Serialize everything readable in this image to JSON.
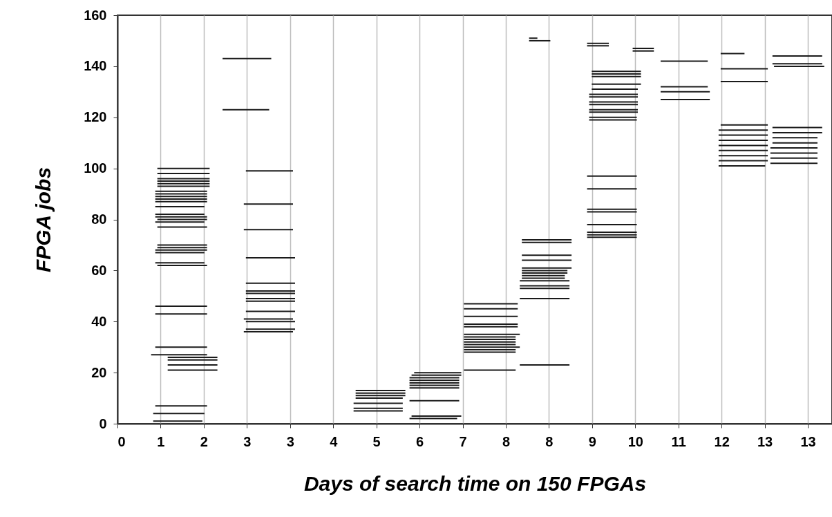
{
  "chart_data": {
    "type": "line",
    "xlabel": "Days of search time on 150 FPGAs",
    "ylabel": "FPGA  jobs",
    "xlim": [
      0,
      13.8
    ],
    "ylim": [
      0,
      160
    ],
    "xticks": [
      0,
      {
        "value": 0.833,
        "label": "1"
      },
      {
        "value": 1.667,
        "label": "2"
      },
      {
        "value": 2.5,
        "label": "3"
      },
      {
        "value": 3.333,
        "label": "3"
      },
      {
        "value": 4.167,
        "label": "4"
      },
      5,
      {
        "value": 5.833,
        "label": "6"
      },
      {
        "value": 6.667,
        "label": "7"
      },
      {
        "value": 7.5,
        "label": "8"
      },
      {
        "value": 8.333,
        "label": "8"
      },
      {
        "value": 9.167,
        "label": "9"
      },
      10,
      {
        "value": 10.833,
        "label": "11"
      },
      {
        "value": 11.667,
        "label": "12"
      },
      {
        "value": 12.5,
        "label": "13"
      },
      {
        "value": 13.333,
        "label": "13"
      }
    ],
    "yticks": [
      0,
      20,
      40,
      60,
      80,
      100,
      120,
      140,
      160
    ],
    "grid": "x",
    "legend": false,
    "marker": "none",
    "line_style": "solid",
    "series": [
      {
        "color": "#1a1a1a",
        "x": [
          0.77,
          1.78
        ],
        "values": [
          100,
          100
        ]
      },
      {
        "color": "#1a1a1a",
        "x": [
          0.77,
          1.78
        ],
        "values": [
          98,
          98
        ]
      },
      {
        "color": "#1a1a1a",
        "x": [
          0.77,
          1.78
        ],
        "values": [
          96,
          96
        ]
      },
      {
        "color": "#1a1a1a",
        "x": [
          0.77,
          1.78
        ],
        "values": [
          95,
          95
        ]
      },
      {
        "color": "#1a1a1a",
        "x": [
          0.77,
          1.78
        ],
        "values": [
          94,
          94
        ]
      },
      {
        "color": "#1a1a1a",
        "x": [
          0.77,
          1.78
        ],
        "values": [
          93,
          93
        ]
      },
      {
        "color": "#1a1a1a",
        "x": [
          0.73,
          1.73
        ],
        "values": [
          91,
          91
        ]
      },
      {
        "color": "#1a1a1a",
        "x": [
          0.73,
          1.73
        ],
        "values": [
          90,
          90
        ]
      },
      {
        "color": "#1a1a1a",
        "x": [
          0.73,
          1.73
        ],
        "values": [
          89,
          89
        ]
      },
      {
        "color": "#1a1a1a",
        "x": [
          0.73,
          1.73
        ],
        "values": [
          88,
          88
        ]
      },
      {
        "color": "#1a1a1a",
        "x": [
          0.73,
          1.73
        ],
        "values": [
          87,
          87
        ]
      },
      {
        "color": "#1a1a1a",
        "x": [
          0.73,
          1.68
        ],
        "values": [
          85,
          85
        ]
      },
      {
        "color": "#1a1a1a",
        "x": [
          0.73,
          1.68
        ],
        "values": [
          82,
          82
        ]
      },
      {
        "color": "#1a1a1a",
        "x": [
          0.73,
          1.73
        ],
        "values": [
          81,
          81
        ]
      },
      {
        "color": "#1a1a1a",
        "x": [
          0.77,
          1.73
        ],
        "values": [
          80,
          80
        ]
      },
      {
        "color": "#1a1a1a",
        "x": [
          0.73,
          1.68
        ],
        "values": [
          79,
          79
        ]
      },
      {
        "color": "#1a1a1a",
        "x": [
          0.77,
          1.73
        ],
        "values": [
          77,
          77
        ]
      },
      {
        "color": "#1a1a1a",
        "x": [
          0.77,
          1.73
        ],
        "values": [
          70,
          70
        ]
      },
      {
        "color": "#1a1a1a",
        "x": [
          0.77,
          1.73
        ],
        "values": [
          69,
          69
        ]
      },
      {
        "color": "#1a1a1a",
        "x": [
          0.73,
          1.73
        ],
        "values": [
          68,
          68
        ]
      },
      {
        "color": "#1a1a1a",
        "x": [
          0.73,
          1.68
        ],
        "values": [
          67,
          67
        ]
      },
      {
        "color": "#1a1a1a",
        "x": [
          0.73,
          1.68
        ],
        "values": [
          63,
          63
        ]
      },
      {
        "color": "#1a1a1a",
        "x": [
          0.77,
          1.73
        ],
        "values": [
          62,
          62
        ]
      },
      {
        "color": "#1a1a1a",
        "x": [
          0.73,
          1.73
        ],
        "values": [
          46,
          46
        ]
      },
      {
        "color": "#1a1a1a",
        "x": [
          0.73,
          1.73
        ],
        "values": [
          43,
          43
        ]
      },
      {
        "color": "#1a1a1a",
        "x": [
          0.73,
          1.73
        ],
        "values": [
          30,
          30
        ]
      },
      {
        "color": "#1a1a1a",
        "x": [
          0.65,
          1.73
        ],
        "values": [
          27,
          27
        ]
      },
      {
        "color": "#1a1a1a",
        "x": [
          0.97,
          1.93
        ],
        "values": [
          26,
          26
        ]
      },
      {
        "color": "#1a1a1a",
        "x": [
          0.97,
          1.93
        ],
        "values": [
          25,
          25
        ]
      },
      {
        "color": "#1a1a1a",
        "x": [
          0.97,
          1.93
        ],
        "values": [
          23,
          23
        ]
      },
      {
        "color": "#1a1a1a",
        "x": [
          0.97,
          1.93
        ],
        "values": [
          21,
          21
        ]
      },
      {
        "color": "#1a1a1a",
        "x": [
          0.73,
          1.73
        ],
        "values": [
          7,
          7
        ]
      },
      {
        "color": "#1a1a1a",
        "x": [
          0.69,
          1.68
        ],
        "values": [
          4,
          4
        ]
      },
      {
        "color": "#1a1a1a",
        "x": [
          0.69,
          1.64
        ],
        "values": [
          1,
          1
        ]
      },
      {
        "color": "#1a1a1a",
        "x": [
          2.03,
          2.97
        ],
        "values": [
          143,
          143
        ]
      },
      {
        "color": "#1a1a1a",
        "x": [
          2.03,
          2.93
        ],
        "values": [
          123,
          123
        ]
      },
      {
        "color": "#1a1a1a",
        "x": [
          2.48,
          3.39
        ],
        "values": [
          99,
          99
        ]
      },
      {
        "color": "#1a1a1a",
        "x": [
          2.44,
          3.39
        ],
        "values": [
          86,
          86
        ]
      },
      {
        "color": "#1a1a1a",
        "x": [
          2.44,
          3.39
        ],
        "values": [
          76,
          76
        ]
      },
      {
        "color": "#1a1a1a",
        "x": [
          2.48,
          3.43
        ],
        "values": [
          65,
          65
        ]
      },
      {
        "color": "#1a1a1a",
        "x": [
          2.48,
          3.43
        ],
        "values": [
          55,
          55
        ]
      },
      {
        "color": "#1a1a1a",
        "x": [
          2.48,
          3.43
        ],
        "values": [
          52,
          52
        ]
      },
      {
        "color": "#1a1a1a",
        "x": [
          2.48,
          3.43
        ],
        "values": [
          51,
          51
        ]
      },
      {
        "color": "#1a1a1a",
        "x": [
          2.48,
          3.43
        ],
        "values": [
          49,
          49
        ]
      },
      {
        "color": "#1a1a1a",
        "x": [
          2.48,
          3.43
        ],
        "values": [
          48,
          48
        ]
      },
      {
        "color": "#1a1a1a",
        "x": [
          2.48,
          3.43
        ],
        "values": [
          44,
          44
        ]
      },
      {
        "color": "#1a1a1a",
        "x": [
          2.44,
          3.39
        ],
        "values": [
          41,
          41
        ]
      },
      {
        "color": "#1a1a1a",
        "x": [
          2.48,
          3.43
        ],
        "values": [
          40,
          40
        ]
      },
      {
        "color": "#1a1a1a",
        "x": [
          2.48,
          3.43
        ],
        "values": [
          37,
          37
        ]
      },
      {
        "color": "#1a1a1a",
        "x": [
          2.44,
          3.39
        ],
        "values": [
          36,
          36
        ]
      },
      {
        "color": "#1a1a1a",
        "x": [
          4.6,
          5.56
        ],
        "values": [
          13,
          13
        ]
      },
      {
        "color": "#1a1a1a",
        "x": [
          4.6,
          5.56
        ],
        "values": [
          12,
          12
        ]
      },
      {
        "color": "#1a1a1a",
        "x": [
          4.6,
          5.56
        ],
        "values": [
          11,
          11
        ]
      },
      {
        "color": "#1a1a1a",
        "x": [
          4.6,
          5.51
        ],
        "values": [
          10,
          10
        ]
      },
      {
        "color": "#1a1a1a",
        "x": [
          4.56,
          5.51
        ],
        "values": [
          8,
          8
        ]
      },
      {
        "color": "#1a1a1a",
        "x": [
          4.56,
          5.51
        ],
        "values": [
          6,
          6
        ]
      },
      {
        "color": "#1a1a1a",
        "x": [
          4.56,
          5.51
        ],
        "values": [
          5,
          5
        ]
      },
      {
        "color": "#1a1a1a",
        "x": [
          5.73,
          6.64
        ],
        "values": [
          20,
          20
        ]
      },
      {
        "color": "#1a1a1a",
        "x": [
          5.68,
          6.64
        ],
        "values": [
          19,
          19
        ]
      },
      {
        "color": "#1a1a1a",
        "x": [
          5.64,
          6.6
        ],
        "values": [
          18,
          18
        ]
      },
      {
        "color": "#1a1a1a",
        "x": [
          5.64,
          6.6
        ],
        "values": [
          17,
          17
        ]
      },
      {
        "color": "#1a1a1a",
        "x": [
          5.64,
          6.6
        ],
        "values": [
          16,
          16
        ]
      },
      {
        "color": "#1a1a1a",
        "x": [
          5.64,
          6.6
        ],
        "values": [
          15,
          15
        ]
      },
      {
        "color": "#1a1a1a",
        "x": [
          5.64,
          6.6
        ],
        "values": [
          14,
          14
        ]
      },
      {
        "color": "#1a1a1a",
        "x": [
          5.64,
          6.6
        ],
        "values": [
          9,
          9
        ]
      },
      {
        "color": "#1a1a1a",
        "x": [
          5.68,
          6.64
        ],
        "values": [
          3,
          3
        ]
      },
      {
        "color": "#1a1a1a",
        "x": [
          5.64,
          6.56
        ],
        "values": [
          2,
          2
        ]
      },
      {
        "color": "#1a1a1a",
        "x": [
          6.69,
          7.73
        ],
        "values": [
          47,
          47
        ]
      },
      {
        "color": "#1a1a1a",
        "x": [
          6.69,
          7.73
        ],
        "values": [
          45,
          45
        ]
      },
      {
        "color": "#1a1a1a",
        "x": [
          6.69,
          7.73
        ],
        "values": [
          42,
          42
        ]
      },
      {
        "color": "#1a1a1a",
        "x": [
          6.69,
          7.73
        ],
        "values": [
          39,
          39
        ]
      },
      {
        "color": "#1a1a1a",
        "x": [
          6.69,
          7.73
        ],
        "values": [
          38,
          38
        ]
      },
      {
        "color": "#1a1a1a",
        "x": [
          6.69,
          7.77
        ],
        "values": [
          35,
          35
        ]
      },
      {
        "color": "#1a1a1a",
        "x": [
          6.69,
          7.69
        ],
        "values": [
          34,
          34
        ]
      },
      {
        "color": "#1a1a1a",
        "x": [
          6.69,
          7.69
        ],
        "values": [
          33,
          33
        ]
      },
      {
        "color": "#1a1a1a",
        "x": [
          6.69,
          7.69
        ],
        "values": [
          32,
          32
        ]
      },
      {
        "color": "#1a1a1a",
        "x": [
          6.69,
          7.69
        ],
        "values": [
          31,
          31
        ]
      },
      {
        "color": "#1a1a1a",
        "x": [
          6.69,
          7.77
        ],
        "values": [
          30,
          30
        ]
      },
      {
        "color": "#1a1a1a",
        "x": [
          6.69,
          7.69
        ],
        "values": [
          29,
          29
        ]
      },
      {
        "color": "#1a1a1a",
        "x": [
          6.69,
          7.69
        ],
        "values": [
          28,
          28
        ]
      },
      {
        "color": "#1a1a1a",
        "x": [
          6.69,
          7.69
        ],
        "values": [
          21,
          21
        ]
      },
      {
        "color": "#1a1a1a",
        "x": [
          7.95,
          8.11
        ],
        "values": [
          151,
          151
        ]
      },
      {
        "color": "#1a1a1a",
        "x": [
          7.95,
          8.36
        ],
        "values": [
          150,
          150
        ]
      },
      {
        "color": "#1a1a1a",
        "x": [
          7.81,
          8.77
        ],
        "values": [
          72,
          72
        ]
      },
      {
        "color": "#1a1a1a",
        "x": [
          7.81,
          8.77
        ],
        "values": [
          71,
          71
        ]
      },
      {
        "color": "#1a1a1a",
        "x": [
          7.81,
          8.77
        ],
        "values": [
          66,
          66
        ]
      },
      {
        "color": "#1a1a1a",
        "x": [
          7.81,
          8.77
        ],
        "values": [
          64,
          64
        ]
      },
      {
        "color": "#1a1a1a",
        "x": [
          7.81,
          8.77
        ],
        "values": [
          61,
          61
        ]
      },
      {
        "color": "#1a1a1a",
        "x": [
          7.81,
          8.69
        ],
        "values": [
          60,
          60
        ]
      },
      {
        "color": "#1a1a1a",
        "x": [
          7.81,
          8.69
        ],
        "values": [
          59,
          59
        ]
      },
      {
        "color": "#1a1a1a",
        "x": [
          7.81,
          8.64
        ],
        "values": [
          58,
          58
        ]
      },
      {
        "color": "#1a1a1a",
        "x": [
          7.81,
          8.64
        ],
        "values": [
          57,
          57
        ]
      },
      {
        "color": "#1a1a1a",
        "x": [
          7.77,
          8.73
        ],
        "values": [
          56,
          56
        ]
      },
      {
        "color": "#1a1a1a",
        "x": [
          7.77,
          8.73
        ],
        "values": [
          54,
          54
        ]
      },
      {
        "color": "#1a1a1a",
        "x": [
          7.77,
          8.73
        ],
        "values": [
          53,
          53
        ]
      },
      {
        "color": "#1a1a1a",
        "x": [
          7.77,
          8.73
        ],
        "values": [
          49,
          49
        ]
      },
      {
        "color": "#1a1a1a",
        "x": [
          7.77,
          8.73
        ],
        "values": [
          23,
          23
        ]
      },
      {
        "color": "#1a1a1a",
        "x": [
          9.07,
          9.49
        ],
        "values": [
          149,
          149
        ]
      },
      {
        "color": "#1a1a1a",
        "x": [
          9.07,
          9.49
        ],
        "values": [
          148,
          148
        ]
      },
      {
        "color": "#1a1a1a",
        "x": [
          9.16,
          10.11
        ],
        "values": [
          138,
          138
        ]
      },
      {
        "color": "#1a1a1a",
        "x": [
          9.16,
          10.11
        ],
        "values": [
          137,
          137
        ]
      },
      {
        "color": "#1a1a1a",
        "x": [
          9.16,
          10.11
        ],
        "values": [
          136,
          136
        ]
      },
      {
        "color": "#1a1a1a",
        "x": [
          9.16,
          10.11
        ],
        "values": [
          133,
          133
        ]
      },
      {
        "color": "#1a1a1a",
        "x": [
          9.16,
          10.05
        ],
        "values": [
          131,
          131
        ]
      },
      {
        "color": "#1a1a1a",
        "x": [
          9.11,
          10.05
        ],
        "values": [
          129,
          129
        ]
      },
      {
        "color": "#1a1a1a",
        "x": [
          9.11,
          10.05
        ],
        "values": [
          128,
          128
        ]
      },
      {
        "color": "#1a1a1a",
        "x": [
          9.11,
          10.05
        ],
        "values": [
          126,
          126
        ]
      },
      {
        "color": "#1a1a1a",
        "x": [
          9.11,
          10.05
        ],
        "values": [
          125,
          125
        ]
      },
      {
        "color": "#1a1a1a",
        "x": [
          9.11,
          10.05
        ],
        "values": [
          123,
          123
        ]
      },
      {
        "color": "#1a1a1a",
        "x": [
          9.11,
          10.05
        ],
        "values": [
          122,
          122
        ]
      },
      {
        "color": "#1a1a1a",
        "x": [
          9.11,
          10.03
        ],
        "values": [
          120,
          120
        ]
      },
      {
        "color": "#1a1a1a",
        "x": [
          9.11,
          10.03
        ],
        "values": [
          119,
          119
        ]
      },
      {
        "color": "#1a1a1a",
        "x": [
          9.07,
          10.03
        ],
        "values": [
          97,
          97
        ]
      },
      {
        "color": "#1a1a1a",
        "x": [
          9.07,
          10.03
        ],
        "values": [
          92,
          92
        ]
      },
      {
        "color": "#1a1a1a",
        "x": [
          9.07,
          10.03
        ],
        "values": [
          84,
          84
        ]
      },
      {
        "color": "#1a1a1a",
        "x": [
          9.07,
          10.03
        ],
        "values": [
          83,
          83
        ]
      },
      {
        "color": "#1a1a1a",
        "x": [
          9.07,
          10.03
        ],
        "values": [
          78,
          78
        ]
      },
      {
        "color": "#1a1a1a",
        "x": [
          9.07,
          10.03
        ],
        "values": [
          75,
          75
        ]
      },
      {
        "color": "#1a1a1a",
        "x": [
          9.07,
          10.03
        ],
        "values": [
          74,
          74
        ]
      },
      {
        "color": "#1a1a1a",
        "x": [
          9.07,
          10.03
        ],
        "values": [
          73,
          73
        ]
      },
      {
        "color": "#1a1a1a",
        "x": [
          9.95,
          10.36
        ],
        "values": [
          147,
          147
        ]
      },
      {
        "color": "#1a1a1a",
        "x": [
          9.95,
          10.36
        ],
        "values": [
          146,
          146
        ]
      },
      {
        "color": "#1a1a1a",
        "x": [
          10.49,
          11.4
        ],
        "values": [
          142,
          142
        ]
      },
      {
        "color": "#1a1a1a",
        "x": [
          10.49,
          11.4
        ],
        "values": [
          132,
          132
        ]
      },
      {
        "color": "#1a1a1a",
        "x": [
          10.49,
          11.44
        ],
        "values": [
          130,
          130
        ]
      },
      {
        "color": "#1a1a1a",
        "x": [
          10.49,
          11.44
        ],
        "values": [
          127,
          127
        ]
      },
      {
        "color": "#1a1a1a",
        "x": [
          11.65,
          12.11
        ],
        "values": [
          145,
          145
        ]
      },
      {
        "color": "#1a1a1a",
        "x": [
          11.65,
          12.56
        ],
        "values": [
          139,
          139
        ]
      },
      {
        "color": "#1a1a1a",
        "x": [
          11.65,
          12.56
        ],
        "values": [
          134,
          134
        ]
      },
      {
        "color": "#1a1a1a",
        "x": [
          11.65,
          12.56
        ],
        "values": [
          117,
          117
        ]
      },
      {
        "color": "#1a1a1a",
        "x": [
          11.61,
          12.56
        ],
        "values": [
          115,
          115
        ]
      },
      {
        "color": "#1a1a1a",
        "x": [
          11.61,
          12.56
        ],
        "values": [
          113,
          113
        ]
      },
      {
        "color": "#1a1a1a",
        "x": [
          11.61,
          12.56
        ],
        "values": [
          111,
          111
        ]
      },
      {
        "color": "#1a1a1a",
        "x": [
          11.61,
          12.56
        ],
        "values": [
          109,
          109
        ]
      },
      {
        "color": "#1a1a1a",
        "x": [
          11.61,
          12.56
        ],
        "values": [
          107,
          107
        ]
      },
      {
        "color": "#1a1a1a",
        "x": [
          11.61,
          12.56
        ],
        "values": [
          105,
          105
        ]
      },
      {
        "color": "#1a1a1a",
        "x": [
          11.61,
          12.56
        ],
        "values": [
          103,
          103
        ]
      },
      {
        "color": "#1a1a1a",
        "x": [
          11.61,
          12.51
        ],
        "values": [
          101,
          101
        ]
      },
      {
        "color": "#1a1a1a",
        "x": [
          12.65,
          13.61
        ],
        "values": [
          144,
          144
        ]
      },
      {
        "color": "#1a1a1a",
        "x": [
          12.65,
          13.61
        ],
        "values": [
          141,
          141
        ]
      },
      {
        "color": "#1a1a1a",
        "x": [
          12.68,
          13.65
        ],
        "values": [
          140,
          140
        ]
      },
      {
        "color": "#1a1a1a",
        "x": [
          12.65,
          13.61
        ],
        "values": [
          116,
          116
        ]
      },
      {
        "color": "#1a1a1a",
        "x": [
          12.65,
          13.61
        ],
        "values": [
          114,
          114
        ]
      },
      {
        "color": "#1a1a1a",
        "x": [
          12.65,
          13.52
        ],
        "values": [
          112,
          112
        ]
      },
      {
        "color": "#1a1a1a",
        "x": [
          12.65,
          13.52
        ],
        "values": [
          110,
          110
        ]
      },
      {
        "color": "#1a1a1a",
        "x": [
          12.61,
          13.52
        ],
        "values": [
          108,
          108
        ]
      },
      {
        "color": "#1a1a1a",
        "x": [
          12.61,
          13.52
        ],
        "values": [
          106,
          106
        ]
      },
      {
        "color": "#1a1a1a",
        "x": [
          12.61,
          13.52
        ],
        "values": [
          104,
          104
        ]
      },
      {
        "color": "#1a1a1a",
        "x": [
          12.61,
          13.52
        ],
        "values": [
          102,
          102
        ]
      }
    ]
  }
}
